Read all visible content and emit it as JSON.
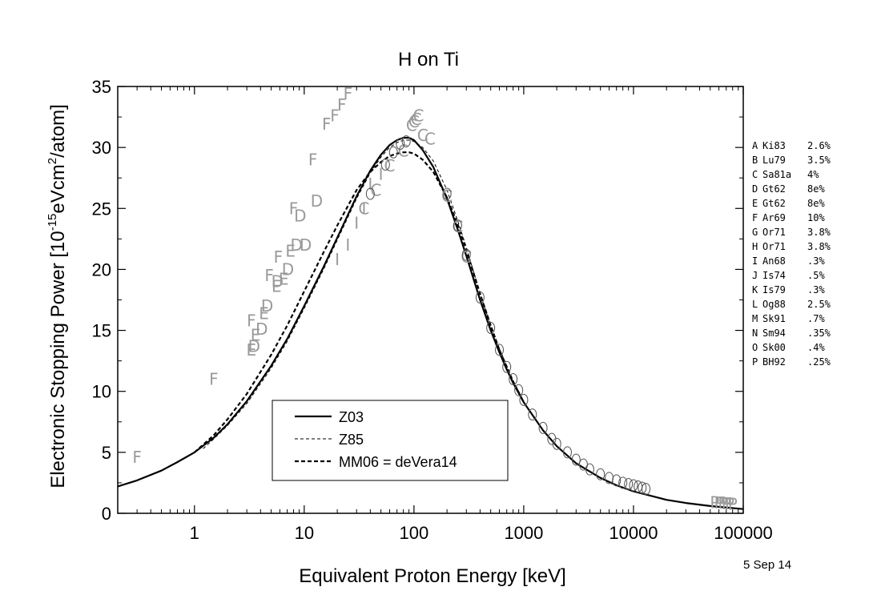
{
  "chart_data": {
    "type": "scatter",
    "title": "H on Ti",
    "xlabel": "Equivalent Proton Energy [keV]",
    "ylabel": {
      "prefix": "Electronic Stopping Power [10",
      "sup1": "-15",
      "mid": "eVcm",
      "sup2": "2",
      "suffix": "/atom]"
    },
    "xscale": "log",
    "xlim": [
      0.2,
      100000
    ],
    "ylim": [
      0,
      35
    ],
    "xticks": [
      1,
      10,
      100,
      1000,
      10000,
      100000
    ],
    "xtick_labels": [
      "1",
      "10",
      "100",
      "1000",
      "10000",
      "100000"
    ],
    "yticks": [
      0,
      5,
      10,
      15,
      20,
      25,
      30,
      35
    ],
    "ytick_labels": [
      "0",
      "5",
      "10",
      "15",
      "20",
      "25",
      "30",
      "35"
    ],
    "date": "5 Sep 14",
    "legend": {
      "placement": "bottom-center",
      "entries": [
        {
          "label": "Z03",
          "style": "solid-thick"
        },
        {
          "label": "Z85",
          "style": "dashed-thin"
        },
        {
          "label": "MM06 = deVera14",
          "style": "dashed-thick"
        }
      ]
    },
    "references": [
      {
        "letter": "A",
        "ref": "Ki83",
        "err": "2.6%"
      },
      {
        "letter": "B",
        "ref": "Lu79",
        "err": "3.5%"
      },
      {
        "letter": "C",
        "ref": "Sa81a",
        "err": "4%"
      },
      {
        "letter": "D",
        "ref": "Gt62",
        "err": "8e%"
      },
      {
        "letter": "E",
        "ref": "Gt62",
        "err": "8e%"
      },
      {
        "letter": "F",
        "ref": "Ar69",
        "err": "10%"
      },
      {
        "letter": "G",
        "ref": "Or71",
        "err": "3.8%"
      },
      {
        "letter": "H",
        "ref": "Or71",
        "err": "3.8%"
      },
      {
        "letter": "I",
        "ref": "An68",
        "err": ".3%"
      },
      {
        "letter": "J",
        "ref": "Is74",
        "err": ".5%"
      },
      {
        "letter": "K",
        "ref": "Is79",
        "err": ".3%"
      },
      {
        "letter": "L",
        "ref": "Og88",
        "err": "2.5%"
      },
      {
        "letter": "M",
        "ref": "Sk91",
        "err": ".7%"
      },
      {
        "letter": "N",
        "ref": "Sm94",
        "err": ".35%"
      },
      {
        "letter": "O",
        "ref": "Sk00",
        "err": ".4%"
      },
      {
        "letter": "P",
        "ref": "BH92",
        "err": ".25%"
      }
    ],
    "series": [
      {
        "name": "Z03",
        "kind": "curve",
        "color": "#000000",
        "x": [
          0.2,
          0.3,
          0.5,
          0.7,
          1,
          1.5,
          2,
          3,
          5,
          7,
          10,
          15,
          20,
          30,
          40,
          50,
          60,
          70,
          80,
          90,
          100,
          120,
          150,
          200,
          250,
          300,
          400,
          500,
          600,
          700,
          800,
          1000,
          1500,
          2000,
          3000,
          5000,
          7000,
          10000,
          20000,
          30000,
          50000,
          100000
        ],
        "y": [
          2.2,
          2.7,
          3.5,
          4.2,
          5.0,
          6.2,
          7.3,
          9.2,
          12.1,
          14.3,
          17.0,
          20.2,
          22.6,
          26.0,
          28.1,
          29.4,
          30.2,
          30.6,
          30.8,
          30.8,
          30.6,
          29.8,
          28.4,
          25.8,
          23.3,
          21.1,
          17.5,
          15.0,
          13.2,
          11.8,
          10.7,
          9.1,
          6.8,
          5.5,
          4.1,
          2.9,
          2.3,
          1.8,
          1.1,
          0.85,
          0.6,
          0.35
        ]
      },
      {
        "name": "Z85",
        "kind": "curve",
        "color": "#000000",
        "x": [
          1.2,
          1.5,
          2,
          3,
          5,
          7,
          10,
          15,
          20,
          30,
          40,
          50,
          60,
          70,
          80,
          90,
          100,
          120,
          150,
          200,
          250,
          300,
          400,
          500,
          600,
          800,
          1000
        ],
        "y": [
          5.3,
          6.1,
          7.2,
          9.0,
          11.9,
          14.1,
          16.8,
          20.0,
          22.4,
          25.8,
          27.9,
          29.2,
          30.0,
          30.4,
          30.6,
          30.6,
          30.5,
          30.0,
          28.9,
          26.5,
          24.0,
          21.8,
          18.0,
          15.4,
          13.5,
          10.9,
          9.2
        ]
      },
      {
        "name": "MM06 = deVera14",
        "kind": "curve",
        "color": "#000000",
        "x": [
          1,
          1.5,
          2,
          3,
          5,
          7,
          10,
          15,
          20,
          30,
          40,
          50,
          60,
          70,
          80,
          90,
          100,
          120,
          150,
          200,
          250,
          300,
          400,
          500,
          600,
          800,
          1000
        ],
        "y": [
          5.0,
          6.4,
          7.7,
          9.8,
          13.0,
          15.4,
          18.2,
          21.4,
          23.6,
          26.5,
          28.0,
          28.8,
          29.3,
          29.5,
          29.6,
          29.6,
          29.5,
          29.0,
          28.0,
          25.9,
          23.7,
          21.6,
          18.0,
          15.4,
          13.4,
          10.8,
          9.1
        ]
      },
      {
        "name": "F",
        "kind": "letters",
        "color": "#9a9a9a",
        "x": [
          0.3,
          1.5,
          3.3,
          4.8,
          5.8,
          8.0,
          12,
          16,
          19,
          22,
          25
        ],
        "y": [
          4.6,
          11.0,
          15.8,
          19.5,
          21.0,
          25.0,
          29.0,
          31.9,
          32.6,
          33.5,
          34.4
        ]
      },
      {
        "name": "E",
        "kind": "letters",
        "color": "#9a9a9a",
        "x": [
          3.3,
          3.6,
          4.3,
          5.6,
          6.5,
          7.5
        ],
        "y": [
          13.4,
          14.6,
          16.4,
          18.6,
          19.2,
          21.5
        ]
      },
      {
        "name": "D",
        "kind": "letters",
        "color": "#9a9a9a",
        "x": [
          3.5,
          4.1,
          4.6,
          5.7,
          7.1,
          8.5,
          9.2,
          10.3,
          13
        ],
        "y": [
          13.7,
          15.1,
          17.0,
          19.0,
          20.0,
          22.0,
          24.4,
          22.0,
          25.6
        ]
      },
      {
        "name": "I",
        "kind": "letters",
        "color": "#9a9a9a",
        "x": [
          20,
          25,
          30,
          35,
          40,
          50
        ],
        "y": [
          20.8,
          22.0,
          23.8,
          25.0,
          27.0,
          27.8
        ]
      },
      {
        "name": "C",
        "kind": "letters",
        "color": "#9a9a9a",
        "x": [
          35,
          45,
          60,
          80,
          95,
          100,
          105,
          110,
          120,
          140,
          200,
          250,
          300
        ],
        "y": [
          25.0,
          26.5,
          28.5,
          29.7,
          31.8,
          32.1,
          32.3,
          32.6,
          31.0,
          30.7,
          26.0,
          23.5,
          21.0
        ]
      },
      {
        "name": "O",
        "kind": "markers",
        "color": "#555555",
        "x": [
          40,
          55,
          65,
          75,
          85,
          200,
          250,
          300,
          400,
          500,
          600,
          700,
          800,
          900,
          1000,
          1200,
          1500,
          1800,
          2000,
          2500,
          3000,
          3500,
          4000,
          5000,
          6000,
          7000,
          8000,
          9000,
          10000,
          11000,
          12000,
          13000
        ],
        "y": [
          26.2,
          28.6,
          29.6,
          30.3,
          30.5,
          26.2,
          23.6,
          21.2,
          17.7,
          15.2,
          13.4,
          12.0,
          11.0,
          10.1,
          9.3,
          8.1,
          7.0,
          6.1,
          5.7,
          5.0,
          4.4,
          4.0,
          3.6,
          3.2,
          2.9,
          2.7,
          2.5,
          2.4,
          2.3,
          2.2,
          2.1,
          2.0
        ]
      },
      {
        "name": "P",
        "kind": "letters",
        "color": "#9a9a9a",
        "x": [
          55000,
          60000,
          65000,
          70000,
          75000,
          80000
        ],
        "y": [
          0.9,
          0.85,
          0.85,
          0.8,
          0.8,
          0.75
        ]
      }
    ]
  }
}
